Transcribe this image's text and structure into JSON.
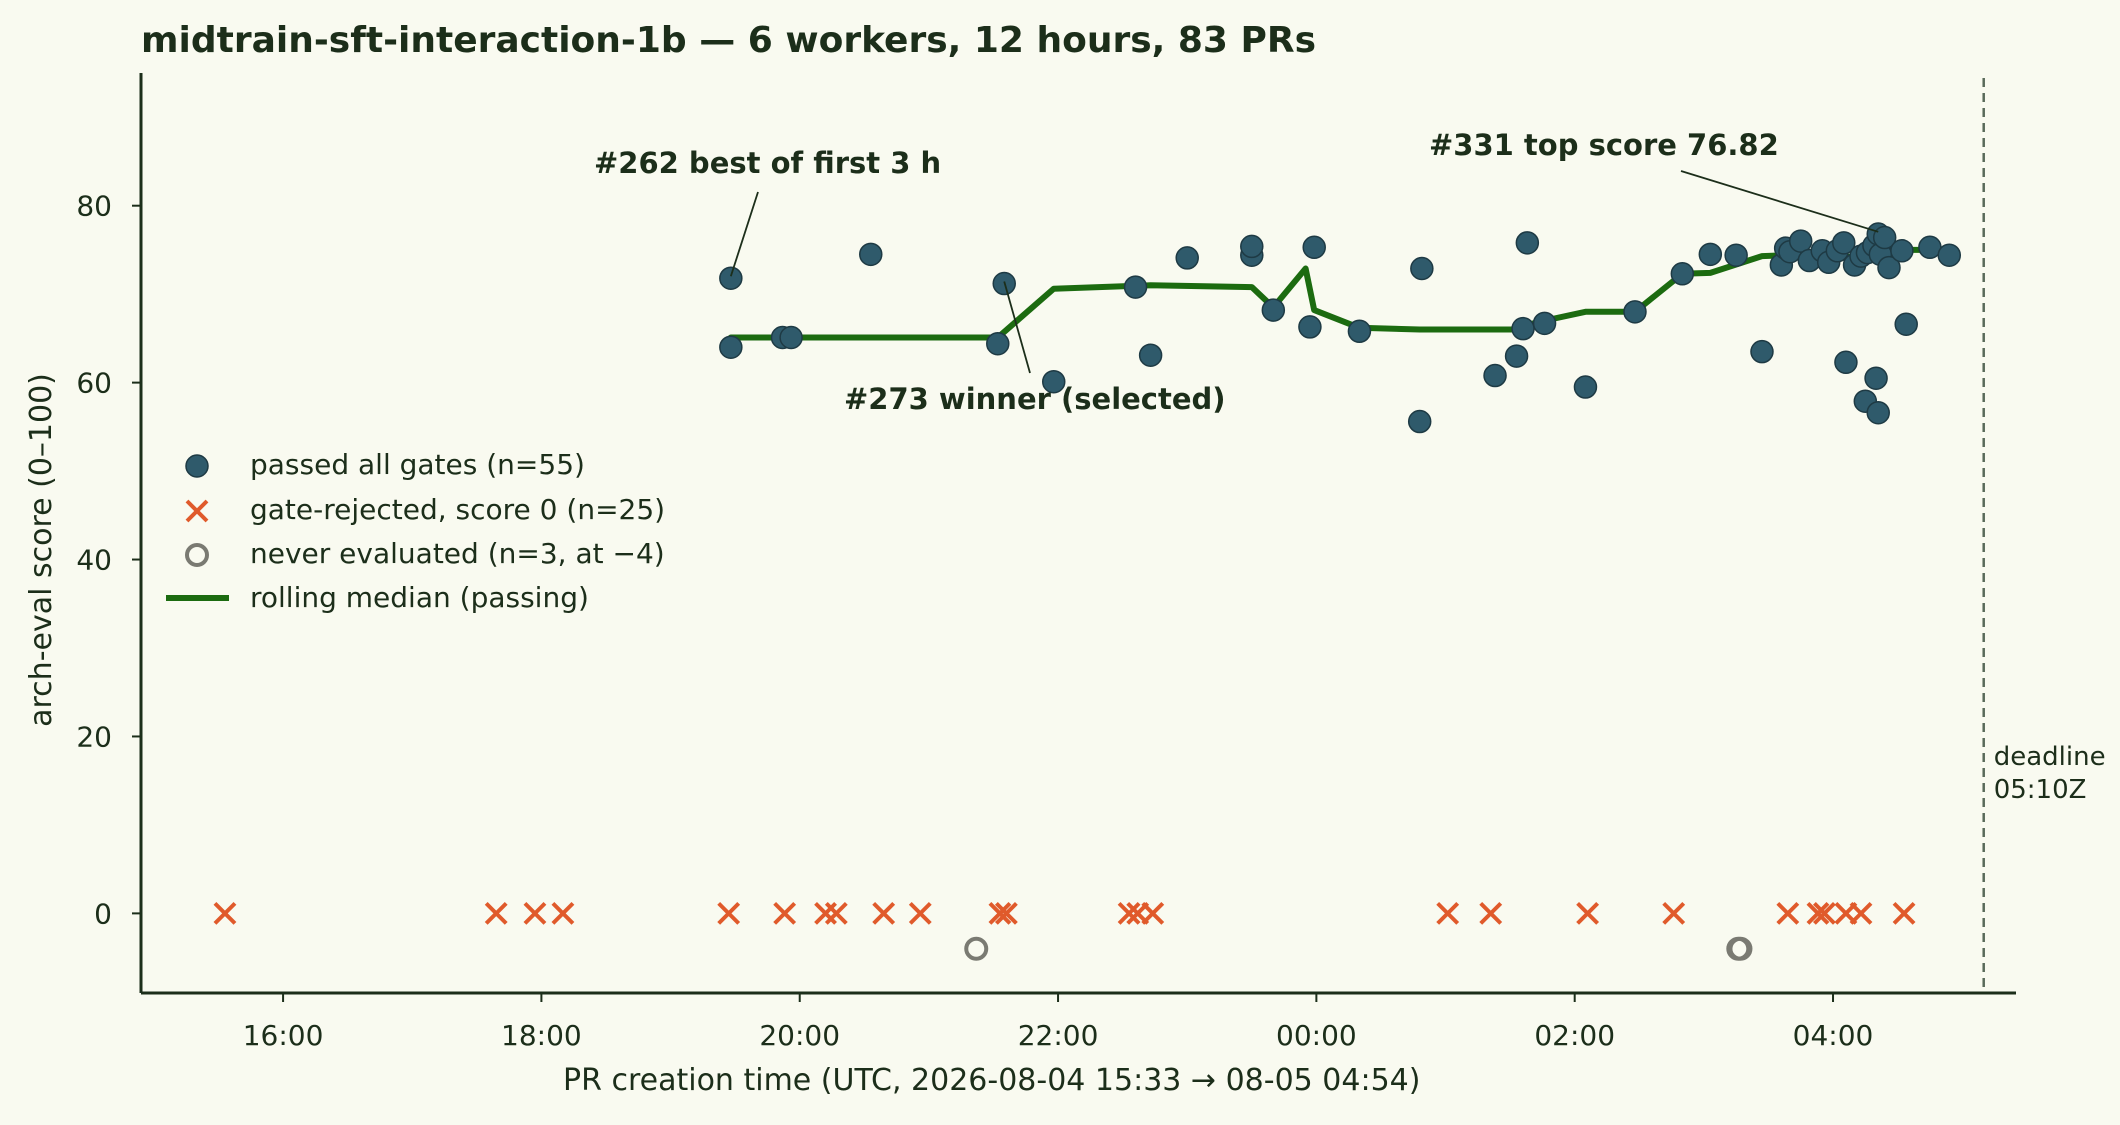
{
  "chart_data": {
    "type": "scatter",
    "title": "midtrain-sft-interaction-1b — 6 workers, 12 hours, 83 PRs",
    "xlabel": "PR creation time (UTC, 2026-08-04 15:33 → 08-05 04:54)",
    "ylabel": "arch-eval score (0–100)",
    "x_ticks": [
      "16:00",
      "18:00",
      "20:00",
      "22:00",
      "00:00",
      "02:00",
      "04:00"
    ],
    "y_ticks": [
      0,
      20,
      40,
      60,
      80
    ],
    "xlim": [
      "2026-08-04T14:54",
      "2026-08-05T05:25"
    ],
    "ylim": [
      -9,
      95
    ],
    "colors": {
      "passed": "#2f5a6b",
      "rejected": "#e05a2b",
      "never": "#7a7a72",
      "median": "#1c6b10",
      "deadline": "#5a6a5a"
    },
    "legend": {
      "placement": "center-left",
      "entries": [
        "passed all gates (n=55)",
        "gate-rejected, score 0 (n=25)",
        "never evaluated (n=3, at −4)",
        "rolling median (passing)"
      ]
    },
    "deadline": {
      "time": "2026-08-05T05:10",
      "label_line1": "deadline",
      "label_line2": "05:10Z"
    },
    "annotations": [
      {
        "text": "#262 best of first 3 h",
        "x": "2026-08-04T19:28",
        "y": 71.8
      },
      {
        "text": "#273 winner (selected)",
        "x": "2026-08-04T21:35",
        "y": 71.2
      },
      {
        "text": "#331 top score 76.82",
        "x": "2026-08-05T04:21",
        "y": 76.82
      }
    ],
    "series": [
      {
        "name": "passed all gates (n=55)",
        "points": [
          [
            "2026-08-04T19:28",
            71.8
          ],
          [
            "2026-08-04T19:28",
            64.0
          ],
          [
            "2026-08-04T19:52",
            65.1
          ],
          [
            "2026-08-04T19:56",
            65.1
          ],
          [
            "2026-08-04T20:33",
            74.5
          ],
          [
            "2026-08-04T21:32",
            64.4
          ],
          [
            "2026-08-04T21:35",
            71.2
          ],
          [
            "2026-08-04T21:58",
            60.1
          ],
          [
            "2026-08-04T22:36",
            70.8
          ],
          [
            "2026-08-04T22:43",
            63.1
          ],
          [
            "2026-08-04T23:00",
            74.1
          ],
          [
            "2026-08-04T23:30",
            74.4
          ],
          [
            "2026-08-04T23:30",
            75.4
          ],
          [
            "2026-08-04T23:40",
            68.2
          ],
          [
            "2026-08-04T23:57",
            66.3
          ],
          [
            "2026-08-04T23:59",
            75.3
          ],
          [
            "2026-08-05T00:20",
            65.8
          ],
          [
            "2026-08-05T00:48",
            55.6
          ],
          [
            "2026-08-05T00:49",
            72.9
          ],
          [
            "2026-08-05T01:23",
            60.8
          ],
          [
            "2026-08-05T01:33",
            63.0
          ],
          [
            "2026-08-05T01:36",
            66.1
          ],
          [
            "2026-08-05T01:38",
            75.8
          ],
          [
            "2026-08-05T01:46",
            66.7
          ],
          [
            "2026-08-05T02:05",
            59.5
          ],
          [
            "2026-08-05T02:28",
            68.0
          ],
          [
            "2026-08-05T02:50",
            72.3
          ],
          [
            "2026-08-05T03:03",
            74.5
          ],
          [
            "2026-08-05T03:15",
            74.4
          ],
          [
            "2026-08-05T03:27",
            63.5
          ],
          [
            "2026-08-05T03:36",
            73.3
          ],
          [
            "2026-08-05T03:38",
            75.2
          ],
          [
            "2026-08-05T03:40",
            74.8
          ],
          [
            "2026-08-05T03:45",
            76.0
          ],
          [
            "2026-08-05T03:49",
            73.8
          ],
          [
            "2026-08-05T03:55",
            74.9
          ],
          [
            "2026-08-05T03:58",
            73.6
          ],
          [
            "2026-08-05T04:02",
            74.9
          ],
          [
            "2026-08-05T04:05",
            75.8
          ],
          [
            "2026-08-05T04:06",
            62.3
          ],
          [
            "2026-08-05T04:10",
            73.3
          ],
          [
            "2026-08-05T04:13",
            74.3
          ],
          [
            "2026-08-05T04:15",
            57.9
          ],
          [
            "2026-08-05T04:16",
            74.7
          ],
          [
            "2026-08-05T04:19",
            75.5
          ],
          [
            "2026-08-05T04:21",
            76.8
          ],
          [
            "2026-08-05T04:22",
            74.5
          ],
          [
            "2026-08-05T04:20",
            60.5
          ],
          [
            "2026-08-05T04:21",
            56.6
          ],
          [
            "2026-08-05T04:24",
            76.4
          ],
          [
            "2026-08-05T04:26",
            73.0
          ],
          [
            "2026-08-05T04:32",
            74.9
          ],
          [
            "2026-08-05T04:34",
            66.6
          ],
          [
            "2026-08-05T04:45",
            75.3
          ],
          [
            "2026-08-05T04:54",
            74.4
          ]
        ]
      },
      {
        "name": "gate-rejected, score 0 (n=25)",
        "points": [
          [
            "2026-08-04T15:33",
            0
          ],
          [
            "2026-08-04T17:39",
            0
          ],
          [
            "2026-08-04T17:57",
            0
          ],
          [
            "2026-08-04T18:10",
            0
          ],
          [
            "2026-08-04T19:27",
            0
          ],
          [
            "2026-08-04T19:53",
            0
          ],
          [
            "2026-08-04T20:12",
            0
          ],
          [
            "2026-08-04T20:17",
            0
          ],
          [
            "2026-08-04T20:39",
            0
          ],
          [
            "2026-08-04T20:56",
            0
          ],
          [
            "2026-08-04T21:33",
            0
          ],
          [
            "2026-08-04T21:36",
            0
          ],
          [
            "2026-08-04T22:33",
            0
          ],
          [
            "2026-08-04T22:37",
            0
          ],
          [
            "2026-08-04T22:44",
            0
          ],
          [
            "2026-08-05T01:01",
            0
          ],
          [
            "2026-08-05T01:21",
            0
          ],
          [
            "2026-08-05T02:06",
            0
          ],
          [
            "2026-08-05T02:46",
            0
          ],
          [
            "2026-08-05T03:39",
            0
          ],
          [
            "2026-08-05T03:53",
            0
          ],
          [
            "2026-08-05T03:56",
            0
          ],
          [
            "2026-08-05T04:06",
            0
          ],
          [
            "2026-08-05T04:13",
            0
          ],
          [
            "2026-08-05T04:33",
            0
          ]
        ]
      },
      {
        "name": "never evaluated (n=3, at −4)",
        "points": [
          [
            "2026-08-04T21:22",
            -4
          ],
          [
            "2026-08-05T03:16",
            -4
          ],
          [
            "2026-08-05T03:17",
            -4
          ]
        ]
      },
      {
        "name": "rolling median (passing)",
        "line": [
          [
            "2026-08-04T19:28",
            65.1
          ],
          [
            "2026-08-04T21:32",
            65.1
          ],
          [
            "2026-08-04T21:58",
            70.6
          ],
          [
            "2026-08-04T22:43",
            71.0
          ],
          [
            "2026-08-04T23:30",
            70.8
          ],
          [
            "2026-08-04T23:40",
            68.5
          ],
          [
            "2026-08-04T23:55",
            72.9
          ],
          [
            "2026-08-04T23:59",
            68.2
          ],
          [
            "2026-08-05T00:20",
            66.2
          ],
          [
            "2026-08-05T00:48",
            66.0
          ],
          [
            "2026-08-05T01:33",
            66.0
          ],
          [
            "2026-08-05T01:42",
            66.8
          ],
          [
            "2026-08-05T02:05",
            68.0
          ],
          [
            "2026-08-05T02:28",
            68.0
          ],
          [
            "2026-08-05T02:50",
            72.3
          ],
          [
            "2026-08-05T03:03",
            72.4
          ],
          [
            "2026-08-05T03:27",
            74.3
          ],
          [
            "2026-08-05T03:38",
            74.4
          ],
          [
            "2026-08-05T03:58",
            73.9
          ],
          [
            "2026-08-05T04:10",
            74.3
          ],
          [
            "2026-08-05T04:26",
            75.0
          ],
          [
            "2026-08-05T04:54",
            75.0
          ]
        ]
      }
    ]
  }
}
